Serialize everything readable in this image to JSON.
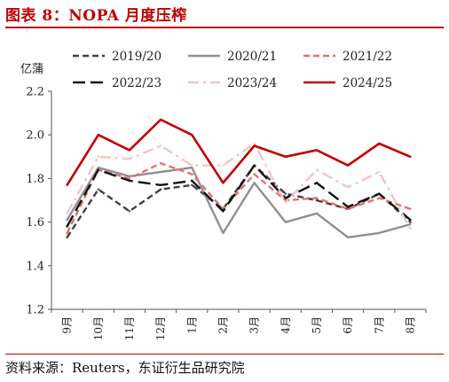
{
  "header": {
    "title": "图表 8：NOPA 月度压榨"
  },
  "footer": {
    "source": "资料来源：Reuters，东证衍生品研究院"
  },
  "chart_data": {
    "type": "line",
    "title": "",
    "ylabel": "亿蒲",
    "xlabel": "",
    "ylim": [
      1.2,
      2.2
    ],
    "yticks": [
      "1.2",
      "1.4",
      "1.6",
      "1.8",
      "2.0",
      "2.2"
    ],
    "grid": false,
    "legend": "top",
    "categories": [
      "9月",
      "10月",
      "11月",
      "12月",
      "1月",
      "2月",
      "3月",
      "4月",
      "5月",
      "6月",
      "7月",
      "8月"
    ],
    "series": [
      {
        "name": "2019/20",
        "color": "#404040",
        "style": "dashed",
        "values": [
          1.53,
          1.75,
          1.65,
          1.75,
          1.77,
          1.66,
          1.86,
          1.73,
          1.7,
          1.66,
          1.73,
          1.6
        ]
      },
      {
        "name": "2020/21",
        "color": "#909090",
        "style": "solid",
        "values": [
          1.61,
          1.85,
          1.81,
          1.83,
          1.85,
          1.55,
          1.78,
          1.6,
          1.64,
          1.53,
          1.55,
          1.59
        ]
      },
      {
        "name": "2021/22",
        "color": "#e87070",
        "style": "dashed",
        "values": [
          1.55,
          1.84,
          1.8,
          1.87,
          1.82,
          1.66,
          1.82,
          1.7,
          1.71,
          1.66,
          1.71,
          1.66
        ]
      },
      {
        "name": "2022/23",
        "color": "#111111",
        "style": "longdash",
        "values": [
          1.58,
          1.84,
          1.79,
          1.77,
          1.79,
          1.65,
          1.86,
          1.71,
          1.78,
          1.67,
          1.73,
          1.61
        ]
      },
      {
        "name": "2023/24",
        "color": "#f4c4c4",
        "style": "dashdot",
        "values": [
          1.64,
          1.9,
          1.89,
          1.95,
          1.86,
          1.86,
          1.96,
          1.69,
          1.84,
          1.76,
          1.83,
          1.57
        ]
      },
      {
        "name": "2024/25",
        "color": "#c00000",
        "style": "solid",
        "values": [
          1.77,
          2.0,
          1.93,
          2.07,
          2.0,
          1.78,
          1.95,
          1.9,
          1.93,
          1.86,
          1.96,
          1.9
        ]
      }
    ]
  }
}
